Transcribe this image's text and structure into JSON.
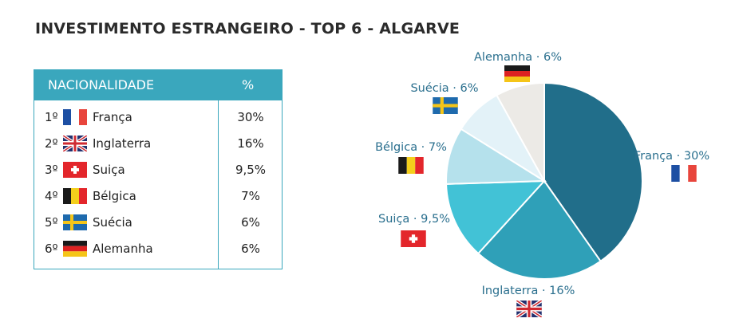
{
  "title": "INVESTIMENTO ESTRANGEIRO - TOP 6 - ALGARVE",
  "table": {
    "header_nationality": "NACIONALIDADE",
    "header_pct": "%",
    "rows": [
      {
        "rank": "1º",
        "flag": "france-flag-icon",
        "country": "França",
        "pct": "30%"
      },
      {
        "rank": "2º",
        "flag": "uk-flag-icon",
        "country": "Inglaterra",
        "pct": "16%"
      },
      {
        "rank": "3º",
        "flag": "switzerland-flag-icon",
        "country": "Suiça",
        "pct": "9,5%"
      },
      {
        "rank": "4º",
        "flag": "belgium-flag-icon",
        "country": "Bélgica",
        "pct": "7%"
      },
      {
        "rank": "5º",
        "flag": "sweden-flag-icon",
        "country": "Suécia",
        "pct": "6%"
      },
      {
        "rank": "6º",
        "flag": "germany-flag-icon",
        "country": "Alemanha",
        "pct": "6%"
      }
    ]
  },
  "chart_data": {
    "type": "pie",
    "title": "",
    "categories": [
      "França",
      "Inglaterra",
      "Suiça",
      "Bélgica",
      "Suécia",
      "Alemanha"
    ],
    "values": [
      30,
      16,
      9.5,
      7,
      6,
      6
    ],
    "labels": [
      "França · 30%",
      "Inglaterra · 16%",
      "Suiça · 9,5%",
      "Bélgica · 7%",
      "Suécia · 6%",
      "Alemanha · 6%"
    ],
    "colors": [
      "#216e8a",
      "#2fa0b8",
      "#42c2d6",
      "#b5e1ec",
      "#e3f2f8",
      "#eceae6"
    ],
    "label_color": "#2a6f8e",
    "start": "12 o'clock",
    "direction": "clockwise"
  }
}
